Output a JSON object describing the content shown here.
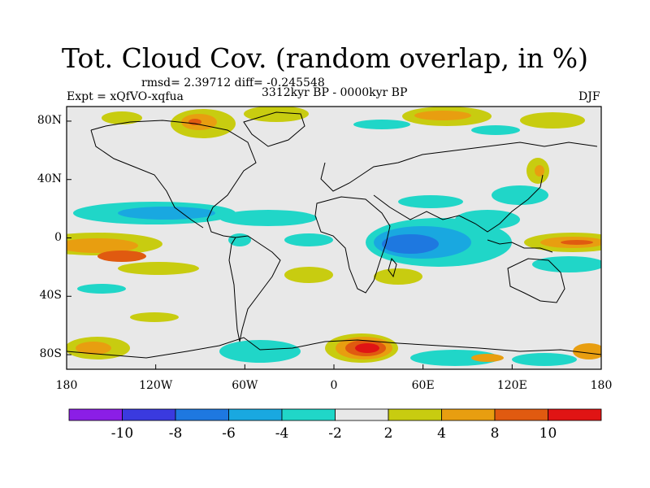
{
  "figure": {
    "title": "Tot. Cloud Cov. (random overlap, in %)",
    "stats_line": "rmsd= 2.39712 diff= -0.245548",
    "experiment_label": "Expt = xQfVO-xqfua",
    "period_label": "3312kyr BP - 0000kyr BP",
    "season_label": "DJF"
  },
  "axes": {
    "x_ticks": [
      "180",
      "120W",
      "60W",
      "0",
      "60E",
      "120E",
      "180"
    ],
    "y_ticks": [
      "80N",
      "40N",
      "0",
      "40S",
      "80S"
    ]
  },
  "colorbar": {
    "bins": [
      {
        "color": "#8b1ee6"
      },
      {
        "color": "#3a3adf"
      },
      {
        "color": "#1e78e0"
      },
      {
        "color": "#19a8e0"
      },
      {
        "color": "#20d6c8"
      },
      {
        "color": "#e8e8e8"
      },
      {
        "color": "#c8cc10"
      },
      {
        "color": "#e89e10"
      },
      {
        "color": "#e05a10"
      },
      {
        "color": "#e01414"
      }
    ],
    "labels": [
      "-10",
      "-8",
      "-6",
      "-4",
      "-2",
      "2",
      "4",
      "8",
      "10"
    ]
  }
}
